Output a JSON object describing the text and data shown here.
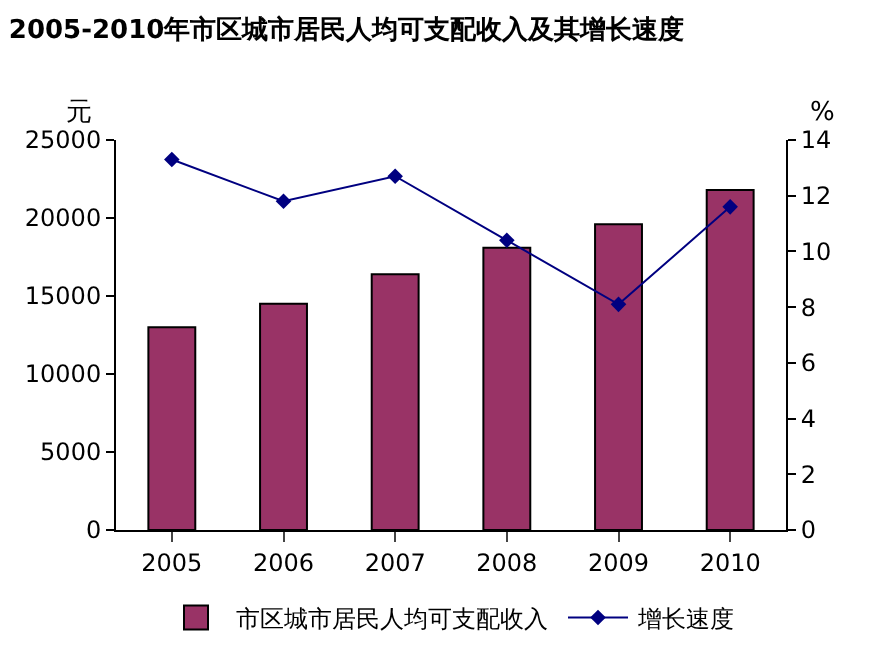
{
  "chart_data": {
    "type": "bar",
    "title": "2005-2010年市区城市居民人均可支配收入及其增长速度",
    "categories": [
      "2005",
      "2006",
      "2007",
      "2008",
      "2009",
      "2010"
    ],
    "series": [
      {
        "name": "市区城市居民人均可支配收入",
        "color": "#993366",
        "values": [
          13000,
          14500,
          16400,
          18100,
          19600,
          21800
        ]
      },
      {
        "name": "增长速度",
        "type": "line",
        "axis": "y2",
        "color": "#000080",
        "marker": "diamond",
        "values": [
          13.3,
          11.8,
          12.7,
          10.4,
          8.1,
          11.6
        ]
      }
    ],
    "ylabel": "元",
    "y2label": "%",
    "ylim": [
      0,
      25000
    ],
    "yticks": [
      0,
      5000,
      10000,
      15000,
      20000,
      25000
    ],
    "y2lim": [
      0,
      14
    ],
    "y2ticks": [
      0,
      2,
      4,
      6,
      8,
      10,
      12,
      14
    ],
    "legend": "bottom"
  }
}
